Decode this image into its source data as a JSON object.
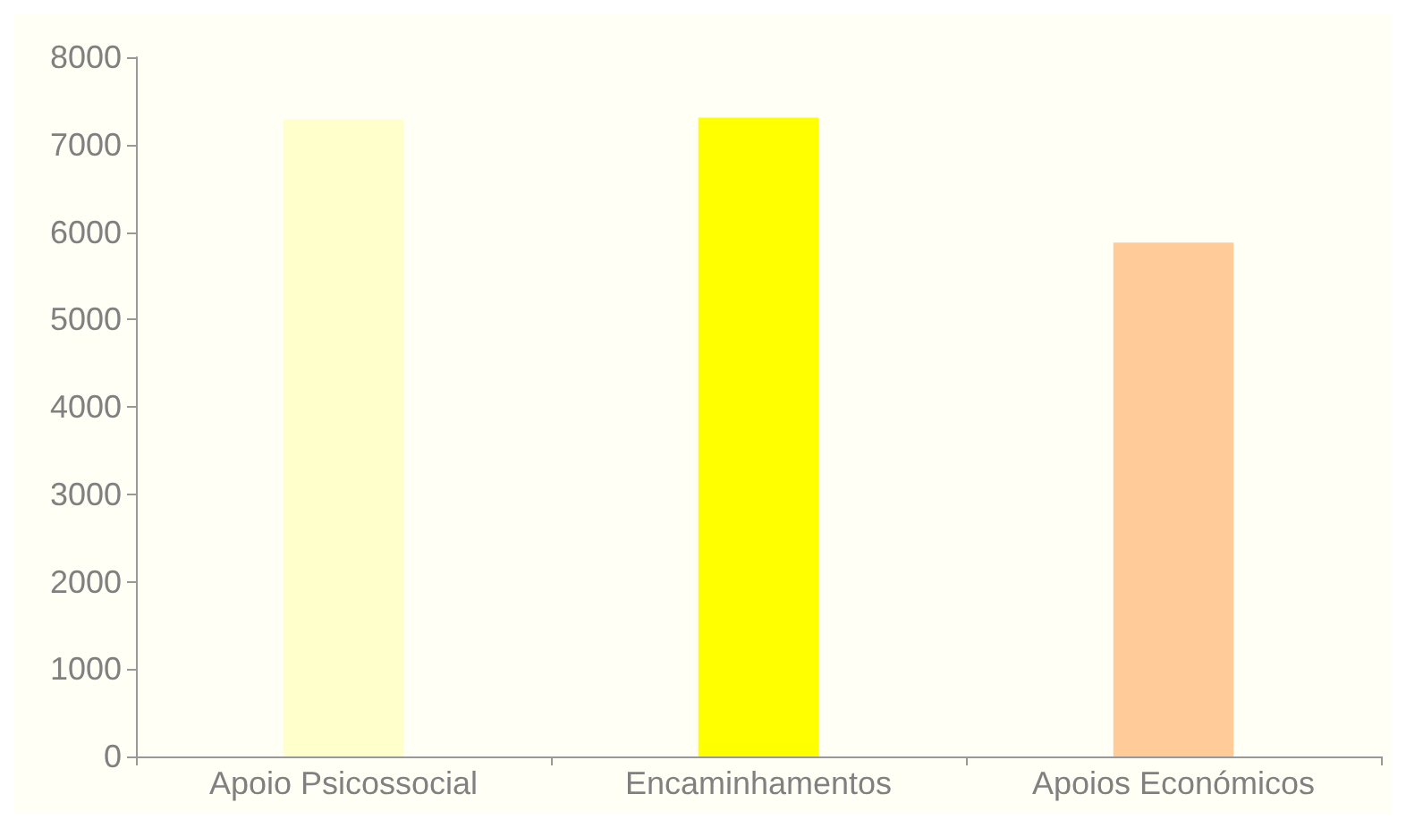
{
  "chart_data": {
    "type": "bar",
    "categories": [
      "Apoio Psicossocial",
      "Encaminhamentos",
      "Apoios Económicos"
    ],
    "values": [
      7290,
      7310,
      5880
    ],
    "colors": [
      "#ffffcc",
      "#ffff00",
      "#ffcc99"
    ],
    "ylim": [
      0,
      8000
    ],
    "yticks": [
      0,
      1000,
      2000,
      3000,
      4000,
      5000,
      6000,
      7000,
      8000
    ],
    "grid": false
  }
}
